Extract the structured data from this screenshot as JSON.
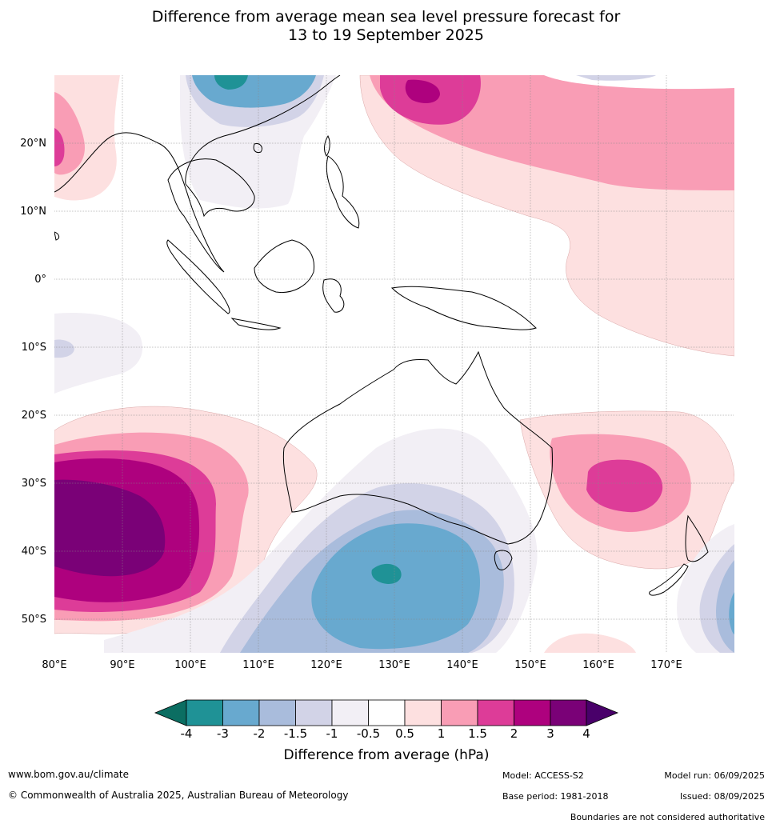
{
  "title_line1": "Difference from average mean sea level pressure forecast for",
  "title_line2": "13 to 19 September 2025",
  "axes": {
    "lon_labels": [
      "80°E",
      "90°E",
      "100°E",
      "110°E",
      "120°E",
      "130°E",
      "140°E",
      "150°E",
      "160°E",
      "170°E"
    ],
    "lat_labels": [
      "20°N",
      "10°N",
      "0°",
      "10°S",
      "20°S",
      "30°S",
      "40°S",
      "50°S"
    ]
  },
  "legend": {
    "title": "Difference from average (hPa)",
    "ticks": [
      "-4",
      "-3",
      "-2",
      "-1.5",
      "-1",
      "-0.5",
      "0.5",
      "1",
      "1.5",
      "2",
      "3",
      "4"
    ],
    "colors": {
      "lt_neg4": "#0b6e62",
      "neg4_neg3": "#1f9296",
      "neg3_neg2": "#68a9cf",
      "neg2_neg1_5": "#a9bcdc",
      "neg1_5_neg1": "#d2d3e7",
      "neg1_neg0_5": "#f2eff5",
      "neutral": "#ffffff",
      "p0_5_1": "#fde0e0",
      "p1_1_5": "#f99db5",
      "p1_5_2": "#dd3c98",
      "p2_3": "#ae017e",
      "p3_4": "#7a0177",
      "gt_4": "#49006a"
    }
  },
  "footer": {
    "url": "www.bom.gov.au/climate",
    "copyright": "© Commonwealth of Australia 2025, Australian Bureau of Meteorology",
    "model": "Model: ACCESS-S2",
    "base_period": "Base period: 1981-2018",
    "model_run": "Model run: 06/09/2025",
    "issued": "Issued: 08/09/2025",
    "disclaimer": "Boundaries are not considered authoritative"
  }
}
